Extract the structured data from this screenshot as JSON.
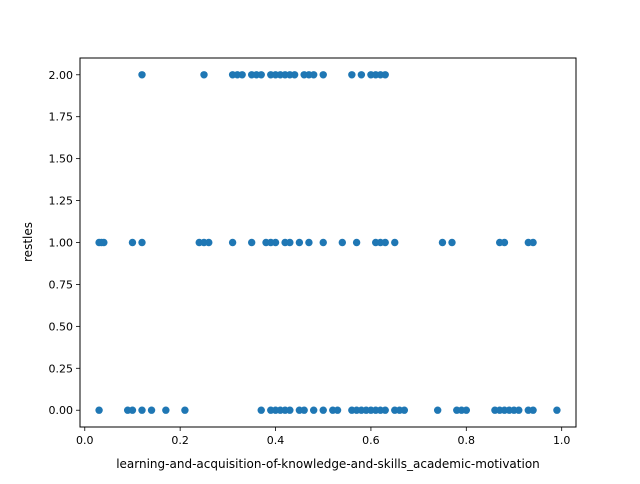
{
  "colors": {
    "point": "#1f77b4",
    "axes": "#000000",
    "background": "#ffffff"
  },
  "chart_data": {
    "type": "scatter",
    "title": "",
    "xlabel": "learning-and-acquisition-of-knowledge-and-skills_academic-motivation",
    "ylabel": "restles",
    "xlim": [
      -0.01,
      1.03
    ],
    "ylim": [
      -0.1,
      2.1
    ],
    "x_ticks": [
      0.0,
      0.2,
      0.4,
      0.6,
      0.8,
      1.0
    ],
    "x_tick_labels": [
      "0.0",
      "0.2",
      "0.4",
      "0.6",
      "0.8",
      "1.0"
    ],
    "y_ticks": [
      0.0,
      0.25,
      0.5,
      0.75,
      1.0,
      1.25,
      1.5,
      1.75,
      2.0
    ],
    "y_tick_labels": [
      "0.00",
      "0.25",
      "0.50",
      "0.75",
      "1.00",
      "1.25",
      "1.50",
      "1.75",
      "2.00"
    ],
    "grid": false,
    "legend": "none",
    "series": [
      {
        "points": [
          [
            0.12,
            2
          ],
          [
            0.25,
            2
          ],
          [
            0.31,
            2
          ],
          [
            0.32,
            2
          ],
          [
            0.33,
            2
          ],
          [
            0.35,
            2
          ],
          [
            0.36,
            2
          ],
          [
            0.37,
            2
          ],
          [
            0.39,
            2
          ],
          [
            0.4,
            2
          ],
          [
            0.41,
            2
          ],
          [
            0.42,
            2
          ],
          [
            0.43,
            2
          ],
          [
            0.44,
            2
          ],
          [
            0.46,
            2
          ],
          [
            0.47,
            2
          ],
          [
            0.48,
            2
          ],
          [
            0.5,
            2
          ],
          [
            0.56,
            2
          ],
          [
            0.58,
            2
          ],
          [
            0.6,
            2
          ],
          [
            0.61,
            2
          ],
          [
            0.62,
            2
          ],
          [
            0.63,
            2
          ],
          [
            0.03,
            1
          ],
          [
            0.035,
            1
          ],
          [
            0.04,
            1
          ],
          [
            0.1,
            1
          ],
          [
            0.12,
            1
          ],
          [
            0.24,
            1
          ],
          [
            0.25,
            1
          ],
          [
            0.26,
            1
          ],
          [
            0.31,
            1
          ],
          [
            0.35,
            1
          ],
          [
            0.38,
            1
          ],
          [
            0.39,
            1
          ],
          [
            0.4,
            1
          ],
          [
            0.42,
            1
          ],
          [
            0.43,
            1
          ],
          [
            0.45,
            1
          ],
          [
            0.47,
            1
          ],
          [
            0.5,
            1
          ],
          [
            0.54,
            1
          ],
          [
            0.57,
            1
          ],
          [
            0.61,
            1
          ],
          [
            0.62,
            1
          ],
          [
            0.63,
            1
          ],
          [
            0.65,
            1
          ],
          [
            0.75,
            1
          ],
          [
            0.77,
            1
          ],
          [
            0.87,
            1
          ],
          [
            0.88,
            1
          ],
          [
            0.93,
            1
          ],
          [
            0.94,
            1
          ],
          [
            0.03,
            0
          ],
          [
            0.09,
            0
          ],
          [
            0.1,
            0
          ],
          [
            0.12,
            0
          ],
          [
            0.14,
            0
          ],
          [
            0.17,
            0
          ],
          [
            0.21,
            0
          ],
          [
            0.37,
            0
          ],
          [
            0.39,
            0
          ],
          [
            0.4,
            0
          ],
          [
            0.41,
            0
          ],
          [
            0.42,
            0
          ],
          [
            0.43,
            0
          ],
          [
            0.45,
            0
          ],
          [
            0.46,
            0
          ],
          [
            0.48,
            0
          ],
          [
            0.5,
            0
          ],
          [
            0.52,
            0
          ],
          [
            0.53,
            0
          ],
          [
            0.56,
            0
          ],
          [
            0.57,
            0
          ],
          [
            0.58,
            0
          ],
          [
            0.59,
            0
          ],
          [
            0.6,
            0
          ],
          [
            0.61,
            0
          ],
          [
            0.62,
            0
          ],
          [
            0.63,
            0
          ],
          [
            0.65,
            0
          ],
          [
            0.66,
            0
          ],
          [
            0.67,
            0
          ],
          [
            0.74,
            0
          ],
          [
            0.78,
            0
          ],
          [
            0.79,
            0
          ],
          [
            0.8,
            0
          ],
          [
            0.86,
            0
          ],
          [
            0.87,
            0
          ],
          [
            0.88,
            0
          ],
          [
            0.89,
            0
          ],
          [
            0.9,
            0
          ],
          [
            0.91,
            0
          ],
          [
            0.93,
            0
          ],
          [
            0.94,
            0
          ],
          [
            0.99,
            0
          ]
        ]
      }
    ]
  }
}
